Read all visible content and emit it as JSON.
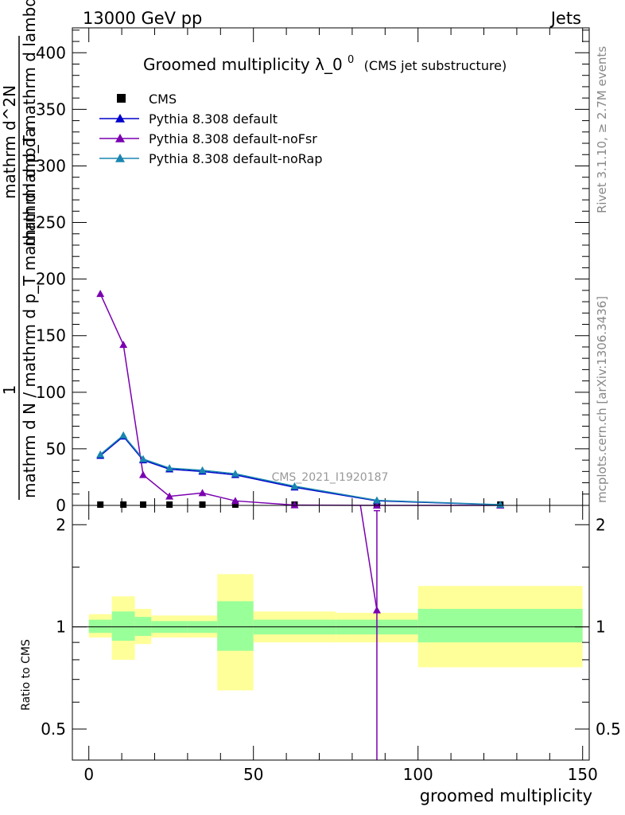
{
  "header": {
    "left": "13000 GeV pp",
    "right": "Jets"
  },
  "title": {
    "main": "Groomed multiplicity",
    "symbol": "λ_0",
    "sup": "0",
    "sub": "(CMS jet substructure)"
  },
  "side_labels": {
    "rivet": "Rivet 3.1.10, ≥ 2.7M events",
    "mcplots": "mcplots.cern.ch [arXiv:1306.3436]"
  },
  "watermark": "CMS_2021_I1920187",
  "colors": {
    "cms": "#000000",
    "default": "#0000cc",
    "noFsr": "#7a00b0",
    "noRap": "#1a86b0",
    "band_inner": "#99ff99",
    "band_outer": "#ffff99"
  },
  "chart_data": [
    {
      "type": "line",
      "panel": "main",
      "ylabel": {
        "frac_num": "1",
        "frac_den": "mathrm d N / mathrm d p_T mathrm d lambda",
        "main_num": "mathrm d^2N",
        "main_den": "mathrm d p_T mathrm d lambda"
      },
      "xlim": [
        -5,
        152
      ],
      "ylim": [
        0,
        422
      ],
      "yticks": [
        0,
        50,
        100,
        150,
        200,
        250,
        300,
        350,
        400
      ],
      "legend_position": "top-left",
      "series": [
        {
          "name": "CMS",
          "key": "cms",
          "marker": "square",
          "x": [
            3.5,
            10.5,
            16.5,
            24.5,
            34.5,
            44.5,
            62.5,
            87.5,
            125
          ],
          "y": [
            0,
            0,
            0,
            0,
            0,
            0,
            0,
            0,
            0
          ]
        },
        {
          "name": "Pythia 8.308 default",
          "key": "default",
          "marker": "triangle",
          "x": [
            3.5,
            10.5,
            16.5,
            24.5,
            34.5,
            44.5,
            62.5,
            87.5,
            125
          ],
          "y": [
            44,
            61,
            40,
            32,
            30,
            27,
            16,
            4,
            0.5
          ]
        },
        {
          "name": "Pythia 8.308 default-noFsr",
          "key": "noFsr",
          "marker": "triangle",
          "x": [
            3.5,
            10.5,
            16.5,
            24.5,
            34.5,
            44.5,
            62.5,
            87.5,
            125
          ],
          "y": [
            187,
            142,
            27,
            8,
            11,
            4,
            0.3,
            0,
            0
          ]
        },
        {
          "name": "Pythia 8.308 default-noRap",
          "key": "noRap",
          "marker": "triangle",
          "x": [
            3.5,
            10.5,
            16.5,
            24.5,
            34.5,
            44.5,
            62.5,
            87.5,
            125
          ],
          "y": [
            45,
            62,
            41,
            33,
            31,
            28,
            17,
            4.5,
            0.6
          ]
        }
      ]
    },
    {
      "type": "line",
      "panel": "ratio",
      "xlabel": "groomed multiplicity",
      "ylabel": "Ratio to CMS",
      "xlim": [
        -5,
        152
      ],
      "ylim": [
        0.405,
        2.28
      ],
      "ytick_labels": [
        "0.5",
        "1",
        "2"
      ],
      "yticks": [
        0.5,
        1,
        2
      ],
      "xticks": [
        0,
        50,
        100,
        150
      ],
      "bins": [
        {
          "lo": 0,
          "hi": 7,
          "inner": [
            0.96,
            1.05
          ],
          "outer": [
            0.93,
            1.09
          ]
        },
        {
          "lo": 7,
          "hi": 14,
          "inner": [
            0.91,
            1.11
          ],
          "outer": [
            0.8,
            1.23
          ]
        },
        {
          "lo": 14,
          "hi": 19,
          "inner": [
            0.94,
            1.07
          ],
          "outer": [
            0.89,
            1.13
          ]
        },
        {
          "lo": 19,
          "hi": 30,
          "inner": [
            0.96,
            1.04
          ],
          "outer": [
            0.93,
            1.08
          ]
        },
        {
          "lo": 30,
          "hi": 39,
          "inner": [
            0.96,
            1.04
          ],
          "outer": [
            0.93,
            1.08
          ]
        },
        {
          "lo": 39,
          "hi": 50,
          "inner": [
            0.85,
            1.19
          ],
          "outer": [
            0.65,
            1.43
          ]
        },
        {
          "lo": 50,
          "hi": 75,
          "inner": [
            0.95,
            1.05
          ],
          "outer": [
            0.9,
            1.11
          ]
        },
        {
          "lo": 75,
          "hi": 100,
          "inner": [
            0.95,
            1.05
          ],
          "outer": [
            0.9,
            1.1
          ]
        },
        {
          "lo": 100,
          "hi": 150,
          "inner": [
            0.9,
            1.13
          ],
          "outer": [
            0.76,
            1.32
          ]
        }
      ],
      "series": [
        {
          "name": "Pythia 8.308 default-noFsr",
          "key": "noFsr",
          "x": [
            82.5,
            87.5
          ],
          "y": [
            2.28,
            1.12
          ],
          "err_x": 87.5,
          "err": [
            0.405,
            2.2
          ]
        }
      ]
    }
  ]
}
